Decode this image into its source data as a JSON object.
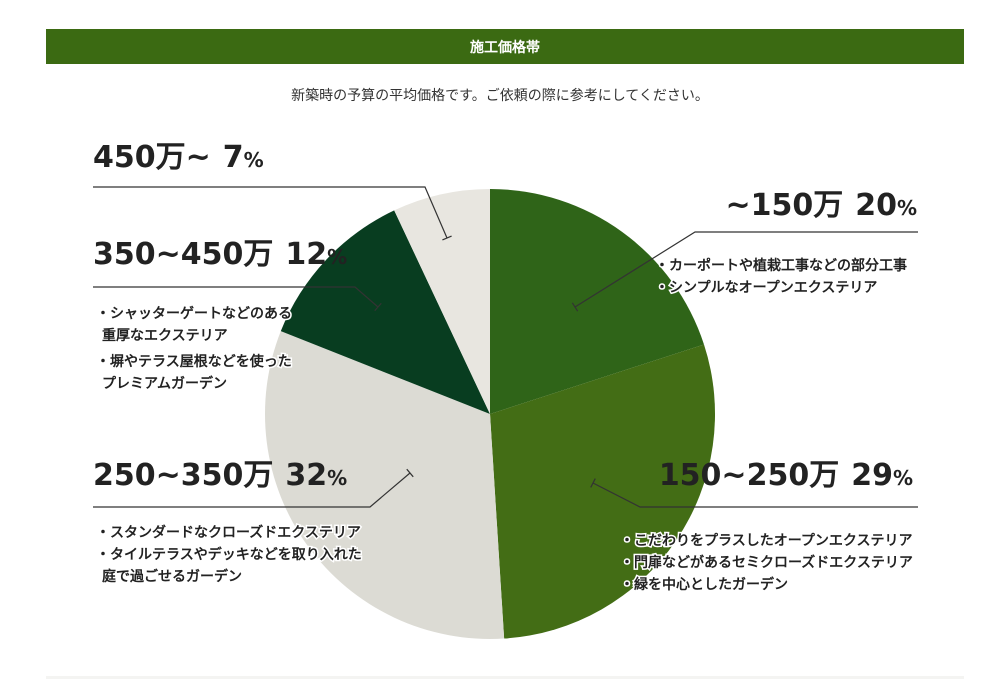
{
  "header": {
    "title": "施工価格帯"
  },
  "subtitle": "新築時の予算の平均価格です。ご依頼の際に参考にしてください。",
  "colors": {
    "header": "#3b6a12",
    "slice_150": "#2f6418",
    "slice_250": "#436d15",
    "slice_350": "#dcdbd4",
    "slice_450": "#083d20",
    "slice_over": "#e8e6e0",
    "line": "#333333"
  },
  "chart_data": {
    "type": "pie",
    "title": "施工価格帯",
    "slices": [
      {
        "range": "~150万",
        "percent": 20,
        "percent_label": "20%",
        "notes": [
          "・カーポートや植栽工事などの部分工事",
          "・シンプルなオープンエクステリア"
        ]
      },
      {
        "range": "150~250万",
        "percent": 29,
        "percent_label": "29%",
        "notes": [
          "・こだわりをプラスしたオープンエクステリア",
          "・門扉などがあるセミクローズドエクステリア",
          "・緑を中心としたガーデン"
        ]
      },
      {
        "range": "250~350万",
        "percent": 32,
        "percent_label": "32%",
        "notes": [
          "・スタンダードなクローズドエクステリア",
          "・タイルテラスやデッキなどを取り入れた",
          "庭で過ごせるガーデン"
        ]
      },
      {
        "range": "350~450万",
        "percent": 12,
        "percent_label": "12%",
        "notes": [
          "・シャッターゲートなどのある",
          "重厚なエクステリア",
          "・塀やテラス屋根などを使った",
          "プレミアムガーデン"
        ]
      },
      {
        "range": "450万~",
        "percent": 7,
        "percent_label": "7%",
        "notes": []
      }
    ]
  }
}
